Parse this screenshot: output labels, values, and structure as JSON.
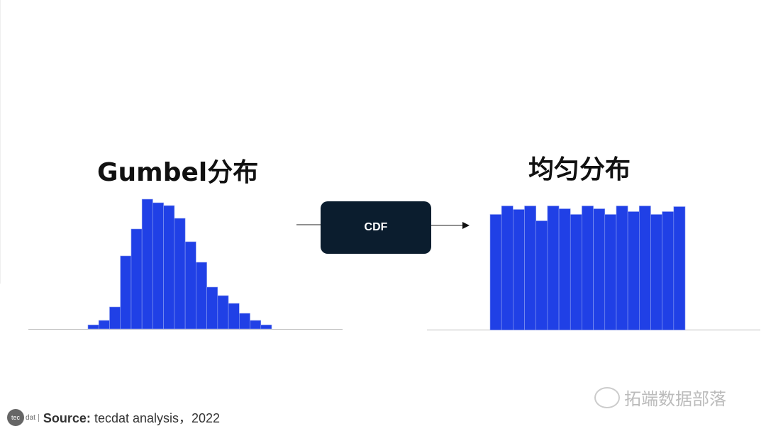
{
  "chart_data": [
    {
      "type": "bar",
      "title": "Gumbel分布",
      "values": [
        5.7,
        12,
        31,
        103,
        141,
        183,
        178,
        174,
        156,
        123,
        94,
        59,
        47,
        36,
        22,
        12,
        5.7
      ],
      "color": "#2040e6"
    },
    {
      "type": "bar",
      "title": "均匀分布",
      "values": [
        163,
        175,
        170,
        175,
        154,
        175,
        171,
        163,
        175,
        171,
        163,
        175,
        167,
        175,
        163,
        167,
        174
      ],
      "color": "#2040e6"
    }
  ],
  "arrow": {
    "label": "CDF"
  },
  "footer": {
    "logo": "tec",
    "logo_suffix": "dat",
    "source_label": "Source:",
    "source_text": " tecdat analysis，2022"
  },
  "watermark": {
    "text": "拓端数据部落",
    "icon": "wechat-icon"
  }
}
